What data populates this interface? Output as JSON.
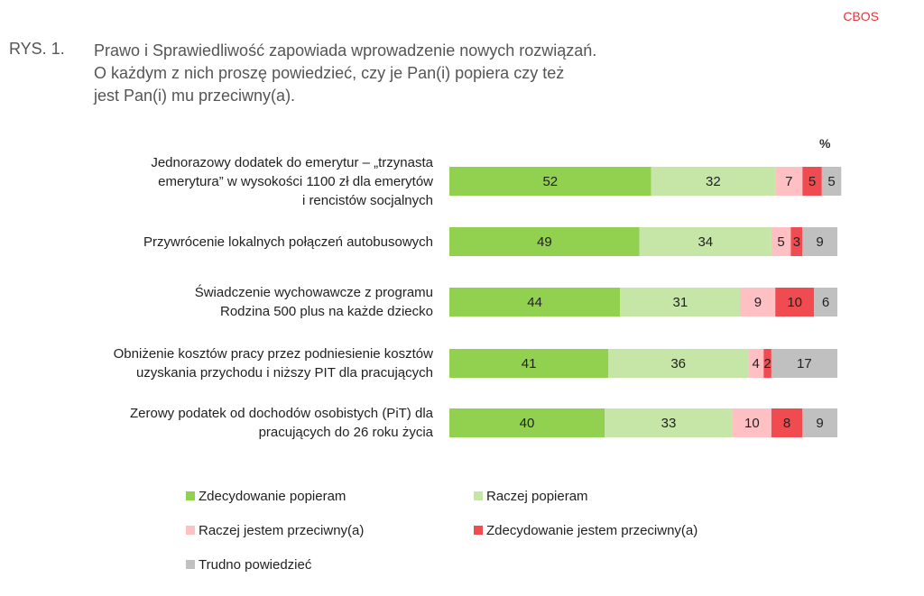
{
  "source": "CBOS",
  "figure_number": "RYS. 1.",
  "title": "Prawo i Sprawiedliwość zapowiada wprowadzenie nowych rozwiązań. O każdym z nich proszę powiedzieć, czy je Pan(i) popiera czy też jest Pan(i) mu przeciwny(a).",
  "title_lines": [
    "Prawo i Sprawiedliwość zapowiada wprowadzenie nowych rozwiązań.",
    "O każdym z nich proszę powiedzieć, czy je Pan(i) popiera czy też",
    "jest Pan(i) mu przeciwny(a)."
  ],
  "chart_data": {
    "type": "bar",
    "stacked": true,
    "orientation": "horizontal",
    "unit": "%",
    "xlim": [
      0,
      100
    ],
    "grid": false,
    "legend_position": "bottom",
    "categories": [
      "Jednorazowy dodatek do emerytur – „trzynasta emerytura” w wysokości 1100 zł dla emerytów i rencistów socjalnych",
      "Przywrócenie lokalnych połączeń autobusowych",
      "Świadczenie wychowawcze z programu Rodzina 500 plus na każde dziecko",
      "Obniżenie kosztów pracy przez podniesienie kosztów uzyskania przychodu i niższy PIT dla pracujących",
      "Zerowy podatek od dochodów osobistych (PiT) dla pracujących do 26 roku życia"
    ],
    "category_lines": [
      [
        "Jednorazowy dodatek do emerytur – „trzynasta",
        "emerytura” w wysokości 1100 zł dla emerytów",
        "i rencistów socjalnych"
      ],
      [
        "Przywrócenie lokalnych połączeń autobusowych"
      ],
      [
        "Świadczenie wychowawcze z programu",
        "Rodzina 500 plus na każde dziecko"
      ],
      [
        "Obniżenie kosztów pracy przez podniesienie kosztów",
        "uzyskania przychodu i niższy PIT dla pracujących"
      ],
      [
        "Zerowy podatek od dochodów osobistych (PiT) dla",
        "pracujących do 26 roku życia"
      ]
    ],
    "series": [
      {
        "name": "Zdecydowanie popieram",
        "color": "#92d050",
        "label_color": "#222222",
        "values": [
          52,
          49,
          44,
          41,
          40
        ]
      },
      {
        "name": "Raczej popieram",
        "color": "#c6e6a8",
        "label_color": "#222222",
        "values": [
          32,
          34,
          31,
          36,
          33
        ]
      },
      {
        "name": "Raczej jestem przeciwny(a)",
        "color": "#ffc0c4",
        "label_color": "#222222",
        "values": [
          7,
          5,
          9,
          4,
          10
        ]
      },
      {
        "name": "Zdecydowanie jestem przeciwny(a)",
        "color": "#f04b50",
        "label_color": "#222222",
        "values": [
          5,
          3,
          10,
          2,
          8
        ]
      },
      {
        "name": "Trudno powiedzieć",
        "color": "#c0c0c0",
        "label_color": "#222222",
        "values": [
          5,
          9,
          6,
          17,
          9
        ]
      }
    ]
  }
}
